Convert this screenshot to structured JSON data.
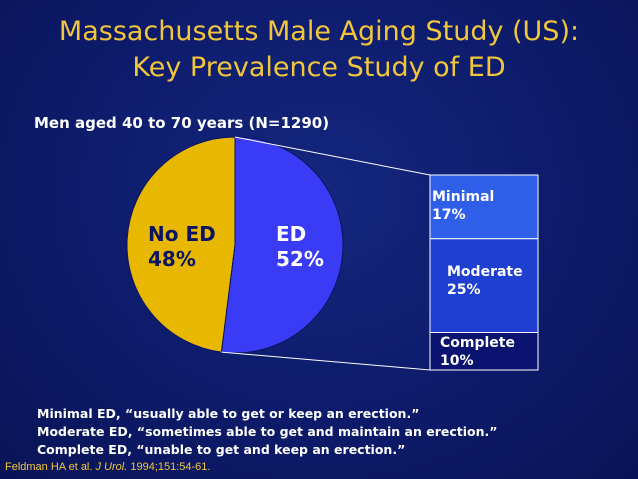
{
  "slide": {
    "title_line1": "Massachusetts Male Aging Study (US):",
    "title_line2": "Key Prevalence Study of ED",
    "subtitle": "Men aged 40 to 70 years (N=1290)",
    "notes": [
      "Minimal ED, “usually able to get or keep an erection.”",
      "Moderate ED, “sometimes able to get and maintain an erection.”",
      "Complete ED, “unable to get and keep an erection.”"
    ],
    "citation": {
      "authors": "Feldman HA et al.",
      "journal": "J Urol.",
      "details": "1994;151:54-61."
    }
  },
  "chart_data": [
    {
      "type": "pie",
      "categories": [
        "No ED",
        "ED"
      ],
      "values": [
        48,
        52
      ],
      "labels": [
        {
          "name": "No ED",
          "pct": "48%"
        },
        {
          "name": "ED",
          "pct": "52%"
        }
      ],
      "colors": {
        "No ED": "#e8b800",
        "ED": "#3a3cf5"
      }
    },
    {
      "type": "bar",
      "stacked": true,
      "categories": [
        "Minimal",
        "Moderate",
        "Complete"
      ],
      "values": [
        17,
        25,
        10
      ],
      "labels": [
        {
          "name": "Minimal",
          "pct": "17%"
        },
        {
          "name": "Moderate",
          "pct": "25%"
        },
        {
          "name": "Complete",
          "pct": "10%"
        }
      ],
      "colors": {
        "Minimal": "#2f5ee8",
        "Moderate": "#1e3fcf",
        "Complete": "#0a1470"
      }
    }
  ]
}
